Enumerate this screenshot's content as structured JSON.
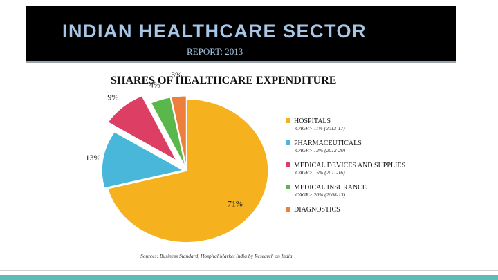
{
  "header": {
    "title": "INDIAN HEALTHCARE SECTOR",
    "subtitle": "REPORT: 2013"
  },
  "source": "Sources: Business Standard, Hospital Market India by Research on India",
  "chart_data": {
    "type": "pie",
    "title": "SHARES OF HEALTHCARE EXPENDITURE",
    "legend_position": "right",
    "slices": [
      {
        "name": "HOSPITALS",
        "value": 71,
        "label": "71%",
        "note": "CAGR> 11% (2012-17)",
        "color": "#f5b21e"
      },
      {
        "name": "PHARMACEUTICALS",
        "value": 13,
        "label": "13%",
        "note": "CAGR> 12% (2012-20)",
        "color": "#48b7d9"
      },
      {
        "name": "MEDICAL DEVICES AND SUPPLIES",
        "value": 9,
        "label": "9%",
        "note": "CAGR> 15% (2011-16)",
        "color": "#dc3f63"
      },
      {
        "name": "MEDICAL INSURANCE",
        "value": 4,
        "label": "4%",
        "note": "CAGR> 20% (2008-13)",
        "color": "#5ab74b"
      },
      {
        "name": "DIAGNOSTICS",
        "value": 3,
        "label": "3%",
        "note": "",
        "color": "#ee7e3b"
      }
    ]
  }
}
